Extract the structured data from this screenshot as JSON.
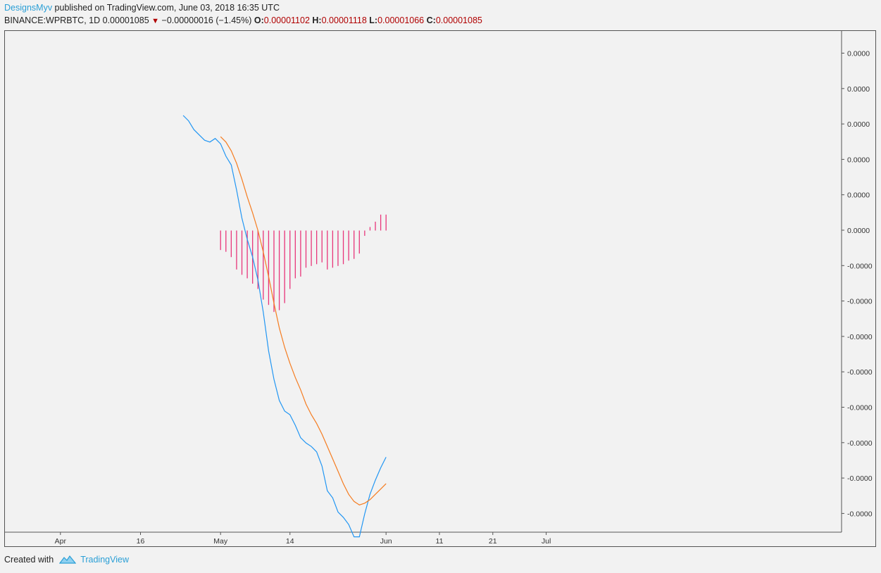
{
  "header": {
    "author": "DesignsMyv",
    "published_text": " published on TradingView.com, June 03, 2018 16:35 UTC",
    "symbol": "BINANCE:WPRBTC, 1D",
    "last": "0.00001085",
    "change": "−0.00000016 (−1.45%)",
    "o_label": "O:",
    "o_value": "0.00001102",
    "h_label": "H:",
    "h_value": "0.00001118",
    "l_label": "L:",
    "l_value": "0.00001066",
    "c_label": "C:",
    "c_value": "0.00001085"
  },
  "footer": {
    "created_with": "Created with",
    "brand": "TradingView"
  },
  "colors": {
    "macd": "#2196f3",
    "signal": "#f57c20",
    "histogram": "#e8357a",
    "axis": "#555555",
    "background": "#f2f2f2"
  },
  "chart_data": {
    "type": "line",
    "title": "",
    "x_axis_ticks": [
      "Apr",
      "16",
      "May",
      "14",
      "Jun",
      "11",
      "21",
      "Jul"
    ],
    "y_axis_ticks": [
      "0.0000",
      "0.0000",
      "0.0000",
      "0.0000",
      "0.0000",
      "0.0000",
      "-0.0000",
      "-0.0000",
      "-0.0000",
      "-0.0000",
      "-0.0000",
      "-0.0000",
      "-0.0000",
      "-0.0000"
    ],
    "ylim": [
      -1.35e-08,
      5e-09
    ],
    "x_start": "2018-03-22",
    "series": [
      {
        "type": "line",
        "color": "#2196f3",
        "points": [
          [
            "2018-04-24",
            3.25e-09
          ],
          [
            "2018-04-25",
            3.1e-09
          ],
          [
            "2018-04-26",
            2.85e-09
          ],
          [
            "2018-04-27",
            2.7e-09
          ],
          [
            "2018-04-28",
            2.55e-09
          ],
          [
            "2018-04-29",
            2.5e-09
          ],
          [
            "2018-04-30",
            2.6e-09
          ],
          [
            "2018-05-01",
            2.45e-09
          ],
          [
            "2018-05-02",
            2.1e-09
          ],
          [
            "2018-05-03",
            1.85e-09
          ],
          [
            "2018-05-04",
            1.15e-09
          ],
          [
            "2018-05-05",
            3.5e-10
          ],
          [
            "2018-05-06",
            -2.5e-10
          ],
          [
            "2018-05-07",
            -7.5e-10
          ],
          [
            "2018-05-08",
            -1.4e-09
          ],
          [
            "2018-05-09",
            -2.3e-09
          ],
          [
            "2018-05-10",
            -3.4e-09
          ],
          [
            "2018-05-11",
            -4.2e-09
          ],
          [
            "2018-05-12",
            -4.8e-09
          ],
          [
            "2018-05-13",
            -5.1e-09
          ],
          [
            "2018-05-14",
            -5.2e-09
          ],
          [
            "2018-05-15",
            -5.5e-09
          ],
          [
            "2018-05-16",
            -5.85e-09
          ],
          [
            "2018-05-17",
            -6e-09
          ],
          [
            "2018-05-18",
            -6.1e-09
          ],
          [
            "2018-05-19",
            -6.25e-09
          ],
          [
            "2018-05-20",
            -6.65e-09
          ],
          [
            "2018-05-21",
            -7.35e-09
          ],
          [
            "2018-05-22",
            -7.55e-09
          ],
          [
            "2018-05-23",
            -7.95e-09
          ],
          [
            "2018-05-24",
            -8.1e-09
          ],
          [
            "2018-05-25",
            -8.3e-09
          ],
          [
            "2018-05-26",
            -8.65e-09
          ],
          [
            "2018-05-27",
            -8.65e-09
          ],
          [
            "2018-05-28",
            -8e-09
          ],
          [
            "2018-05-29",
            -7.45e-09
          ],
          [
            "2018-05-30",
            -7.05e-09
          ],
          [
            "2018-05-31",
            -6.7e-09
          ],
          [
            "2018-06-01",
            -6.4e-09
          ]
        ]
      },
      {
        "type": "line",
        "color": "#f57c20",
        "points": [
          [
            "2018-05-01",
            2.65e-09
          ],
          [
            "2018-05-02",
            2.5e-09
          ],
          [
            "2018-05-03",
            2.25e-09
          ],
          [
            "2018-05-04",
            1.9e-09
          ],
          [
            "2018-05-05",
            1.45e-09
          ],
          [
            "2018-05-06",
            9.5e-10
          ],
          [
            "2018-05-07",
            5e-10
          ],
          [
            "2018-05-08",
            0.0
          ],
          [
            "2018-05-09",
            -6e-10
          ],
          [
            "2018-05-10",
            -1.3e-09
          ],
          [
            "2018-05-11",
            -2.05e-09
          ],
          [
            "2018-05-12",
            -2.75e-09
          ],
          [
            "2018-05-13",
            -3.3e-09
          ],
          [
            "2018-05-14",
            -3.75e-09
          ],
          [
            "2018-05-15",
            -4.15e-09
          ],
          [
            "2018-05-16",
            -4.5e-09
          ],
          [
            "2018-05-17",
            -4.9e-09
          ],
          [
            "2018-05-18",
            -5.2e-09
          ],
          [
            "2018-05-19",
            -5.45e-09
          ],
          [
            "2018-05-20",
            -5.75e-09
          ],
          [
            "2018-05-21",
            -6.1e-09
          ],
          [
            "2018-05-22",
            -6.45e-09
          ],
          [
            "2018-05-23",
            -6.8e-09
          ],
          [
            "2018-05-24",
            -7.15e-09
          ],
          [
            "2018-05-25",
            -7.45e-09
          ],
          [
            "2018-05-26",
            -7.65e-09
          ],
          [
            "2018-05-27",
            -7.75e-09
          ],
          [
            "2018-05-28",
            -7.7e-09
          ],
          [
            "2018-05-29",
            -7.6e-09
          ],
          [
            "2018-05-30",
            -7.45e-09
          ],
          [
            "2018-05-31",
            -7.3e-09
          ],
          [
            "2018-06-01",
            -7.15e-09
          ]
        ]
      },
      {
        "type": "histogram",
        "color": "#e8357a",
        "points": [
          [
            "2018-05-01",
            -5.5e-10
          ],
          [
            "2018-05-02",
            -6e-10
          ],
          [
            "2018-05-03",
            -7.5e-10
          ],
          [
            "2018-05-04",
            -1.1e-09
          ],
          [
            "2018-05-05",
            -1.25e-09
          ],
          [
            "2018-05-06",
            -1.35e-09
          ],
          [
            "2018-05-07",
            -1.5e-09
          ],
          [
            "2018-05-08",
            -1.65e-09
          ],
          [
            "2018-05-09",
            -1.95e-09
          ],
          [
            "2018-05-10",
            -2.1e-09
          ],
          [
            "2018-05-11",
            -2.3e-09
          ],
          [
            "2018-05-12",
            -2.25e-09
          ],
          [
            "2018-05-13",
            -2.05e-09
          ],
          [
            "2018-05-14",
            -1.65e-09
          ],
          [
            "2018-05-15",
            -1.35e-09
          ],
          [
            "2018-05-16",
            -1.3e-09
          ],
          [
            "2018-05-17",
            -1.05e-09
          ],
          [
            "2018-05-18",
            -1e-09
          ],
          [
            "2018-05-19",
            -9.5e-10
          ],
          [
            "2018-05-20",
            -9e-10
          ],
          [
            "2018-05-21",
            -1.1e-09
          ],
          [
            "2018-05-22",
            -1.05e-09
          ],
          [
            "2018-05-23",
            -1e-09
          ],
          [
            "2018-05-24",
            -9.5e-10
          ],
          [
            "2018-05-25",
            -8.5e-10
          ],
          [
            "2018-05-26",
            -8e-10
          ],
          [
            "2018-05-27",
            -6.5e-10
          ],
          [
            "2018-05-28",
            -1.5e-10
          ],
          [
            "2018-05-29",
            1e-10
          ],
          [
            "2018-05-30",
            2.5e-10
          ],
          [
            "2018-05-31",
            4.5e-10
          ],
          [
            "2018-06-01",
            4.5e-10
          ]
        ]
      }
    ]
  }
}
